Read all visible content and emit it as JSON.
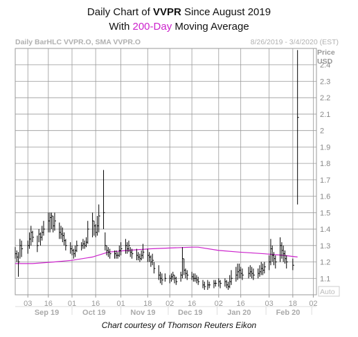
{
  "title": {
    "prefix": "Daily Chart of ",
    "ticker": "VVPR",
    "suffix": " Since August 2019",
    "line2_prefix": "With ",
    "ma_label": "200-Day",
    "line2_suffix": " Moving Average"
  },
  "header": {
    "left": "Daily BarHLC VVPR.O, SMA VVPR.O",
    "right": "8/26/2019 - 3/4/2020 (EST)"
  },
  "courtesy": "Chart courtesy of Thomson Reuters Eikon",
  "colors": {
    "bars": "#000000",
    "ma": "#cc22cc",
    "grid": "#999999"
  },
  "chart_data": {
    "type": "bar",
    "subtype": "ohlc-hlc",
    "y_axis": {
      "title": "Price",
      "unit": "USD",
      "range": [
        1.0,
        2.5
      ],
      "ticks": [
        "1.1",
        "1.2",
        "1.3",
        "1.4",
        "1.5",
        "1.6",
        "1.7",
        "1.8",
        "1.9",
        "2",
        "2.1",
        "2.2",
        "2.3",
        "2.4"
      ],
      "tick_values": [
        1.1,
        1.2,
        1.3,
        1.4,
        1.5,
        1.6,
        1.7,
        1.8,
        1.9,
        2.0,
        2.1,
        2.2,
        2.3,
        2.4
      ],
      "auto_label": "Auto"
    },
    "x_axis": {
      "day_ticks": [
        "03",
        "16",
        "01",
        "16",
        "01",
        "18",
        "02",
        "16",
        "02",
        "16",
        "03",
        "18",
        "02"
      ],
      "month_labels": [
        "Sep 19",
        "Oct 19",
        "Nov 19",
        "Dec 19",
        "Jan 20",
        "Feb 20"
      ],
      "range_dates": [
        "2019-08-26",
        "2020-03-04"
      ]
    },
    "grid": true,
    "series": [
      {
        "name": "VVPR.O",
        "kind": "hlc",
        "points": [
          {
            "d": "2019-08-26",
            "h": 1.29,
            "l": 1.22,
            "c": 1.25
          },
          {
            "d": "2019-08-27",
            "h": 1.27,
            "l": 1.2,
            "c": 1.23
          },
          {
            "d": "2019-08-28",
            "h": 1.26,
            "l": 1.11,
            "c": 1.2
          },
          {
            "d": "2019-08-29",
            "h": 1.34,
            "l": 1.22,
            "c": 1.3
          },
          {
            "d": "2019-08-30",
            "h": 1.33,
            "l": 1.23,
            "c": 1.28
          },
          {
            "d": "2019-09-03",
            "h": 1.33,
            "l": 1.25,
            "c": 1.3
          },
          {
            "d": "2019-09-04",
            "h": 1.38,
            "l": 1.28,
            "c": 1.34
          },
          {
            "d": "2019-09-05",
            "h": 1.42,
            "l": 1.3,
            "c": 1.38
          },
          {
            "d": "2019-09-06",
            "h": 1.39,
            "l": 1.32,
            "c": 1.35
          },
          {
            "d": "2019-09-09",
            "h": 1.36,
            "l": 1.26,
            "c": 1.3
          },
          {
            "d": "2019-09-10",
            "h": 1.4,
            "l": 1.32,
            "c": 1.37
          },
          {
            "d": "2019-09-11",
            "h": 1.38,
            "l": 1.3,
            "c": 1.35
          },
          {
            "d": "2019-09-12",
            "h": 1.42,
            "l": 1.33,
            "c": 1.38
          },
          {
            "d": "2019-09-13",
            "h": 1.45,
            "l": 1.36,
            "c": 1.4
          },
          {
            "d": "2019-09-16",
            "h": 1.5,
            "l": 1.38,
            "c": 1.45
          },
          {
            "d": "2019-09-17",
            "h": 1.5,
            "l": 1.38,
            "c": 1.47
          },
          {
            "d": "2019-09-18",
            "h": 1.5,
            "l": 1.4,
            "c": 1.48
          },
          {
            "d": "2019-09-19",
            "h": 1.48,
            "l": 1.38,
            "c": 1.42
          },
          {
            "d": "2019-09-20",
            "h": 1.5,
            "l": 1.39,
            "c": 1.45
          },
          {
            "d": "2019-09-23",
            "h": 1.44,
            "l": 1.34,
            "c": 1.38
          },
          {
            "d": "2019-09-24",
            "h": 1.42,
            "l": 1.34,
            "c": 1.37
          },
          {
            "d": "2019-09-25",
            "h": 1.41,
            "l": 1.32,
            "c": 1.36
          },
          {
            "d": "2019-09-26",
            "h": 1.38,
            "l": 1.3,
            "c": 1.33
          },
          {
            "d": "2019-09-27",
            "h": 1.34,
            "l": 1.27,
            "c": 1.3
          },
          {
            "d": "2019-09-30",
            "h": 1.32,
            "l": 1.25,
            "c": 1.28
          },
          {
            "d": "2019-10-01",
            "h": 1.3,
            "l": 1.24,
            "c": 1.27
          },
          {
            "d": "2019-10-02",
            "h": 1.28,
            "l": 1.22,
            "c": 1.25
          },
          {
            "d": "2019-10-03",
            "h": 1.3,
            "l": 1.23,
            "c": 1.27
          },
          {
            "d": "2019-10-04",
            "h": 1.33,
            "l": 1.26,
            "c": 1.3
          },
          {
            "d": "2019-10-07",
            "h": 1.32,
            "l": 1.27,
            "c": 1.3
          },
          {
            "d": "2019-10-08",
            "h": 1.34,
            "l": 1.28,
            "c": 1.31
          },
          {
            "d": "2019-10-09",
            "h": 1.33,
            "l": 1.28,
            "c": 1.3
          },
          {
            "d": "2019-10-10",
            "h": 1.35,
            "l": 1.29,
            "c": 1.32
          },
          {
            "d": "2019-10-11",
            "h": 1.45,
            "l": 1.31,
            "c": 1.4
          },
          {
            "d": "2019-10-14",
            "h": 1.5,
            "l": 1.35,
            "c": 1.45
          },
          {
            "d": "2019-10-15",
            "h": 1.45,
            "l": 1.36,
            "c": 1.42
          },
          {
            "d": "2019-10-16",
            "h": 1.43,
            "l": 1.35,
            "c": 1.38
          },
          {
            "d": "2019-10-17",
            "h": 1.48,
            "l": 1.36,
            "c": 1.42
          },
          {
            "d": "2019-10-18",
            "h": 1.55,
            "l": 1.38,
            "c": 1.48
          },
          {
            "d": "2019-10-21",
            "h": 1.76,
            "l": 1.4,
            "c": 1.5
          },
          {
            "d": "2019-10-22",
            "h": 1.38,
            "l": 1.27,
            "c": 1.3
          },
          {
            "d": "2019-10-23",
            "h": 1.3,
            "l": 1.24,
            "c": 1.27
          },
          {
            "d": "2019-10-24",
            "h": 1.29,
            "l": 1.23,
            "c": 1.26
          },
          {
            "d": "2019-10-25",
            "h": 1.28,
            "l": 1.22,
            "c": 1.25
          },
          {
            "d": "2019-10-28",
            "h": 1.27,
            "l": 1.22,
            "c": 1.25
          },
          {
            "d": "2019-10-29",
            "h": 1.27,
            "l": 1.22,
            "c": 1.24
          },
          {
            "d": "2019-10-30",
            "h": 1.26,
            "l": 1.22,
            "c": 1.24
          },
          {
            "d": "2019-10-31",
            "h": 1.3,
            "l": 1.23,
            "c": 1.27
          },
          {
            "d": "2019-11-01",
            "h": 1.32,
            "l": 1.24,
            "c": 1.28
          },
          {
            "d": "2019-11-04",
            "h": 1.34,
            "l": 1.25,
            "c": 1.3
          },
          {
            "d": "2019-11-05",
            "h": 1.32,
            "l": 1.25,
            "c": 1.28
          },
          {
            "d": "2019-11-06",
            "h": 1.33,
            "l": 1.26,
            "c": 1.3
          },
          {
            "d": "2019-11-07",
            "h": 1.29,
            "l": 1.23,
            "c": 1.26
          },
          {
            "d": "2019-11-08",
            "h": 1.28,
            "l": 1.22,
            "c": 1.25
          },
          {
            "d": "2019-11-11",
            "h": 1.28,
            "l": 1.21,
            "c": 1.24
          },
          {
            "d": "2019-11-12",
            "h": 1.26,
            "l": 1.21,
            "c": 1.23
          },
          {
            "d": "2019-11-13",
            "h": 1.25,
            "l": 1.2,
            "c": 1.22
          },
          {
            "d": "2019-11-14",
            "h": 1.27,
            "l": 1.21,
            "c": 1.24
          },
          {
            "d": "2019-11-15",
            "h": 1.31,
            "l": 1.22,
            "c": 1.26
          },
          {
            "d": "2019-11-18",
            "h": 1.28,
            "l": 1.2,
            "c": 1.24
          },
          {
            "d": "2019-11-19",
            "h": 1.26,
            "l": 1.2,
            "c": 1.23
          },
          {
            "d": "2019-11-20",
            "h": 1.24,
            "l": 1.17,
            "c": 1.2
          },
          {
            "d": "2019-11-21",
            "h": 1.25,
            "l": 1.18,
            "c": 1.21
          },
          {
            "d": "2019-11-22",
            "h": 1.2,
            "l": 1.13,
            "c": 1.16
          },
          {
            "d": "2019-11-25",
            "h": 1.18,
            "l": 1.09,
            "c": 1.12
          },
          {
            "d": "2019-11-26",
            "h": 1.14,
            "l": 1.07,
            "c": 1.1
          },
          {
            "d": "2019-11-27",
            "h": 1.13,
            "l": 1.06,
            "c": 1.09
          },
          {
            "d": "2019-11-29",
            "h": 1.13,
            "l": 1.08,
            "c": 1.1
          },
          {
            "d": "2019-12-02",
            "h": 1.12,
            "l": 1.07,
            "c": 1.1
          },
          {
            "d": "2019-12-03",
            "h": 1.13,
            "l": 1.08,
            "c": 1.11
          },
          {
            "d": "2019-12-04",
            "h": 1.14,
            "l": 1.09,
            "c": 1.12
          },
          {
            "d": "2019-12-05",
            "h": 1.12,
            "l": 1.07,
            "c": 1.1
          },
          {
            "d": "2019-12-06",
            "h": 1.11,
            "l": 1.06,
            "c": 1.08
          },
          {
            "d": "2019-12-09",
            "h": 1.14,
            "l": 1.08,
            "c": 1.12
          },
          {
            "d": "2019-12-10",
            "h": 1.29,
            "l": 1.1,
            "c": 1.22
          },
          {
            "d": "2019-12-11",
            "h": 1.22,
            "l": 1.12,
            "c": 1.15
          },
          {
            "d": "2019-12-12",
            "h": 1.16,
            "l": 1.1,
            "c": 1.13
          },
          {
            "d": "2019-12-13",
            "h": 1.15,
            "l": 1.09,
            "c": 1.12
          },
          {
            "d": "2019-12-16",
            "h": 1.14,
            "l": 1.09,
            "c": 1.11
          },
          {
            "d": "2019-12-17",
            "h": 1.13,
            "l": 1.08,
            "c": 1.1
          },
          {
            "d": "2019-12-18",
            "h": 1.13,
            "l": 1.08,
            "c": 1.1
          },
          {
            "d": "2019-12-19",
            "h": 1.12,
            "l": 1.07,
            "c": 1.09
          },
          {
            "d": "2019-12-20",
            "h": 1.11,
            "l": 1.06,
            "c": 1.08
          },
          {
            "d": "2019-12-23",
            "h": 1.09,
            "l": 1.04,
            "c": 1.06
          },
          {
            "d": "2019-12-24",
            "h": 1.08,
            "l": 1.03,
            "c": 1.05
          },
          {
            "d": "2019-12-26",
            "h": 1.09,
            "l": 1.03,
            "c": 1.06
          },
          {
            "d": "2019-12-27",
            "h": 1.08,
            "l": 1.04,
            "c": 1.06
          },
          {
            "d": "2019-12-30",
            "h": 1.09,
            "l": 1.04,
            "c": 1.07
          },
          {
            "d": "2019-12-31",
            "h": 1.09,
            "l": 1.05,
            "c": 1.07
          },
          {
            "d": "2020-01-02",
            "h": 1.1,
            "l": 1.05,
            "c": 1.08
          },
          {
            "d": "2020-01-03",
            "h": 1.09,
            "l": 1.04,
            "c": 1.07
          },
          {
            "d": "2020-01-06",
            "h": 1.1,
            "l": 1.05,
            "c": 1.08
          },
          {
            "d": "2020-01-07",
            "h": 1.09,
            "l": 1.04,
            "c": 1.06
          },
          {
            "d": "2020-01-08",
            "h": 1.08,
            "l": 1.03,
            "c": 1.05
          },
          {
            "d": "2020-01-09",
            "h": 1.12,
            "l": 1.04,
            "c": 1.08
          },
          {
            "d": "2020-01-10",
            "h": 1.15,
            "l": 1.06,
            "c": 1.1
          },
          {
            "d": "2020-01-13",
            "h": 1.17,
            "l": 1.08,
            "c": 1.12
          },
          {
            "d": "2020-01-14",
            "h": 1.19,
            "l": 1.09,
            "c": 1.14
          },
          {
            "d": "2020-01-15",
            "h": 1.19,
            "l": 1.1,
            "c": 1.15
          },
          {
            "d": "2020-01-16",
            "h": 1.17,
            "l": 1.1,
            "c": 1.13
          },
          {
            "d": "2020-01-17",
            "h": 1.16,
            "l": 1.09,
            "c": 1.12
          },
          {
            "d": "2020-01-21",
            "h": 1.17,
            "l": 1.1,
            "c": 1.13
          },
          {
            "d": "2020-01-22",
            "h": 1.18,
            "l": 1.11,
            "c": 1.14
          },
          {
            "d": "2020-01-23",
            "h": 1.17,
            "l": 1.1,
            "c": 1.13
          },
          {
            "d": "2020-01-24",
            "h": 1.16,
            "l": 1.09,
            "c": 1.12
          },
          {
            "d": "2020-01-27",
            "h": 1.16,
            "l": 1.1,
            "c": 1.13
          },
          {
            "d": "2020-01-28",
            "h": 1.18,
            "l": 1.11,
            "c": 1.14
          },
          {
            "d": "2020-01-29",
            "h": 1.2,
            "l": 1.12,
            "c": 1.16
          },
          {
            "d": "2020-01-30",
            "h": 1.19,
            "l": 1.12,
            "c": 1.15
          },
          {
            "d": "2020-01-31",
            "h": 1.2,
            "l": 1.13,
            "c": 1.17
          },
          {
            "d": "2020-02-03",
            "h": 1.24,
            "l": 1.15,
            "c": 1.2
          },
          {
            "d": "2020-02-04",
            "h": 1.34,
            "l": 1.18,
            "c": 1.28
          },
          {
            "d": "2020-02-05",
            "h": 1.3,
            "l": 1.2,
            "c": 1.24
          },
          {
            "d": "2020-02-06",
            "h": 1.26,
            "l": 1.18,
            "c": 1.22
          },
          {
            "d": "2020-02-07",
            "h": 1.24,
            "l": 1.16,
            "c": 1.2
          },
          {
            "d": "2020-02-10",
            "h": 1.35,
            "l": 1.2,
            "c": 1.3
          },
          {
            "d": "2020-02-11",
            "h": 1.32,
            "l": 1.22,
            "c": 1.27
          },
          {
            "d": "2020-02-12",
            "h": 1.3,
            "l": 1.2,
            "c": 1.25
          },
          {
            "d": "2020-02-13",
            "h": 1.27,
            "l": 1.19,
            "c": 1.22
          },
          {
            "d": "2020-02-14",
            "h": 1.24,
            "l": 1.16,
            "c": 1.2
          },
          {
            "d": "2020-02-18",
            "h": 1.22,
            "l": 1.15,
            "c": 1.18
          },
          {
            "d": "2020-02-21",
            "h": 2.49,
            "l": 1.55,
            "c": 2.08
          }
        ]
      },
      {
        "name": "SMA VVPR.O",
        "kind": "line",
        "points": [
          {
            "d": "2019-08-26",
            "v": 1.19
          },
          {
            "d": "2019-09-06",
            "v": 1.19
          },
          {
            "d": "2019-09-20",
            "v": 1.2
          },
          {
            "d": "2019-10-01",
            "v": 1.21
          },
          {
            "d": "2019-10-14",
            "v": 1.23
          },
          {
            "d": "2019-10-24",
            "v": 1.26
          },
          {
            "d": "2019-11-05",
            "v": 1.27
          },
          {
            "d": "2019-11-20",
            "v": 1.28
          },
          {
            "d": "2019-12-02",
            "v": 1.285
          },
          {
            "d": "2019-12-16",
            "v": 1.29
          },
          {
            "d": "2019-12-20",
            "v": 1.29
          },
          {
            "d": "2020-01-02",
            "v": 1.27
          },
          {
            "d": "2020-01-15",
            "v": 1.26
          },
          {
            "d": "2020-01-31",
            "v": 1.25
          },
          {
            "d": "2020-02-12",
            "v": 1.24
          },
          {
            "d": "2020-02-21",
            "v": 1.23
          }
        ]
      }
    ]
  }
}
